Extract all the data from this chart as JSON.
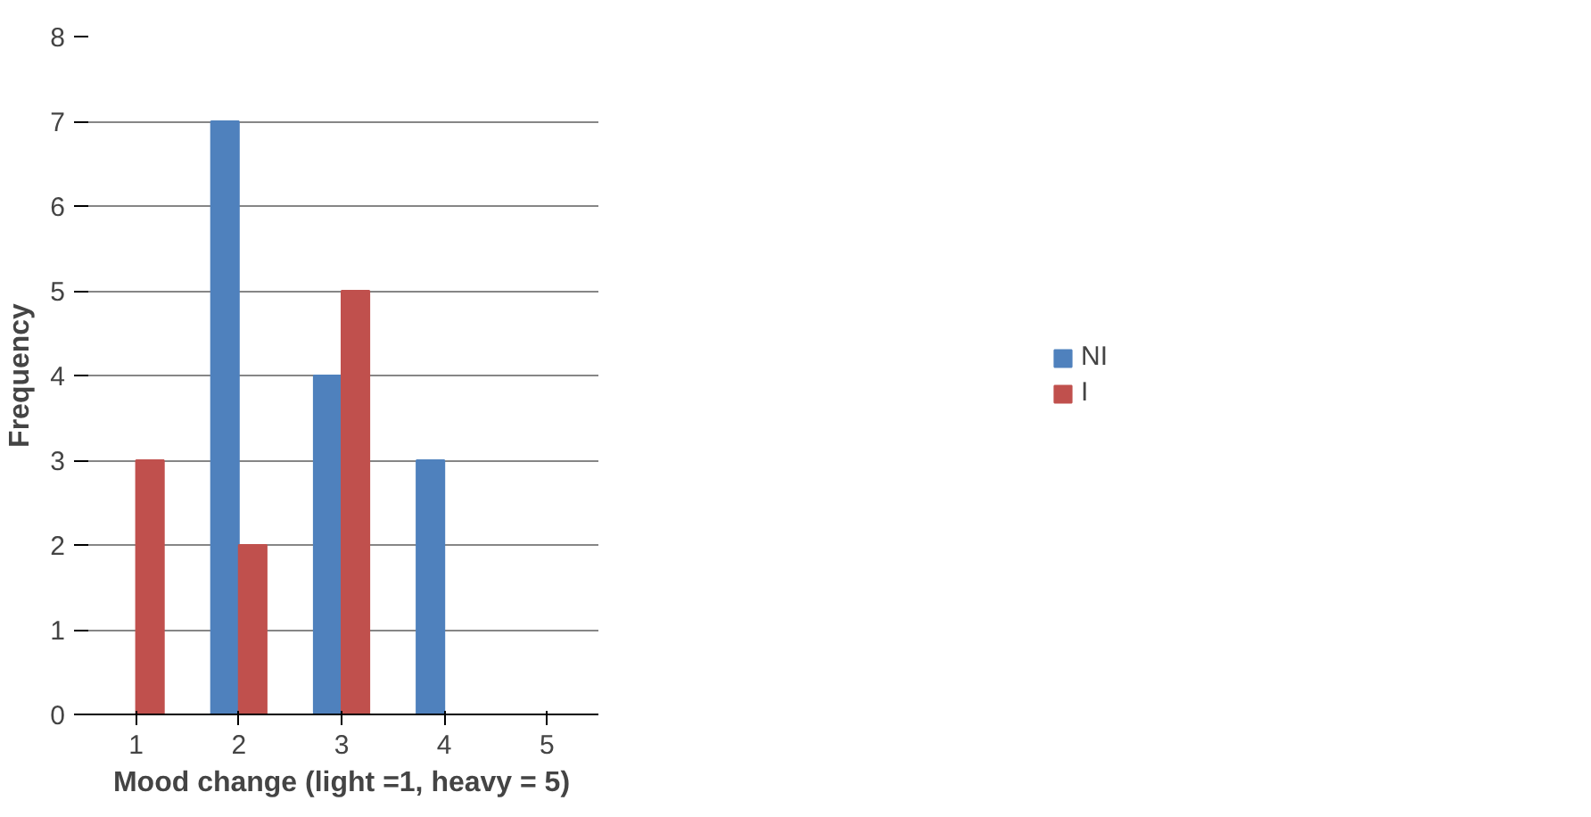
{
  "chart_data": {
    "type": "bar",
    "xlabel": "Mood change (light =1, heavy = 5)",
    "ylabel": "Frequency",
    "categories": [
      "1",
      "2",
      "3",
      "4",
      "5"
    ],
    "series": [
      {
        "name": "NI",
        "color": "#4f81bd",
        "values": [
          0,
          7,
          4,
          3,
          0
        ]
      },
      {
        "name": "I",
        "color": "#c0504d",
        "values": [
          3,
          2,
          5,
          0,
          0
        ]
      }
    ],
    "ylim": [
      0,
      8
    ],
    "yticks": [
      0,
      1,
      2,
      3,
      4,
      5,
      6,
      7,
      8
    ],
    "grid": "y",
    "legend": "right"
  }
}
